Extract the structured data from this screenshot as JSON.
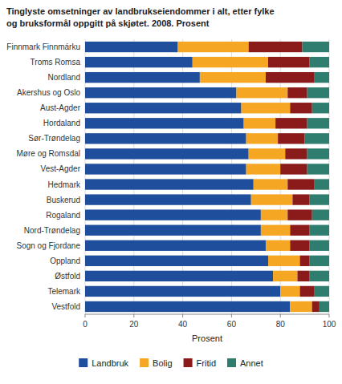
{
  "chart_data": {
    "type": "bar",
    "orientation": "horizontal",
    "stacked": true,
    "title": "Tinglyste omsetninger av landbrukseiendommer i alt, etter fylke\nog bruksformål oppgitt på skjøtet. 2008. Prosent",
    "x_label": "Prosent",
    "categories": [
      "Finnmark Finnmárku",
      "Troms Romsa",
      "Nordland",
      "Akershus og Oslo",
      "Aust-Agder",
      "Hordaland",
      "Sør-Trøndelag",
      "Møre og Romsdal",
      "Vest-Agder",
      "Hedmark",
      "Buskerud",
      "Rogaland",
      "Nord-Trøndelag",
      "Sogn og Fjordane",
      "Oppland",
      "Østfold",
      "Telemark",
      "Vestfold"
    ],
    "series": [
      {
        "name": "Landbruk",
        "color": "#1f4e9c",
        "values": [
          38,
          44,
          47,
          62,
          64,
          65,
          66,
          67,
          66,
          69,
          68,
          72,
          72,
          74,
          75,
          77,
          80,
          84
        ]
      },
      {
        "name": "Bolig",
        "color": "#f5a623",
        "values": [
          29,
          31,
          27,
          21,
          20,
          13,
          13,
          15,
          14,
          14,
          17,
          11,
          12,
          10,
          13,
          10,
          8,
          9
        ]
      },
      {
        "name": "Fritid",
        "color": "#8b1a1a",
        "values": [
          22,
          17,
          20,
          8,
          9,
          13,
          11,
          9,
          11,
          11,
          7,
          10,
          8,
          8,
          4,
          5,
          6,
          3
        ]
      },
      {
        "name": "Annet",
        "color": "#2e7d6e",
        "values": [
          11,
          8,
          6,
          9,
          7,
          9,
          10,
          9,
          9,
          6,
          8,
          7,
          8,
          8,
          8,
          8,
          6,
          4
        ]
      }
    ],
    "xlim": [
      0,
      100
    ],
    "xticks": [
      0,
      20,
      40,
      60,
      80,
      100
    ],
    "grid": true,
    "legend": "bottom"
  }
}
